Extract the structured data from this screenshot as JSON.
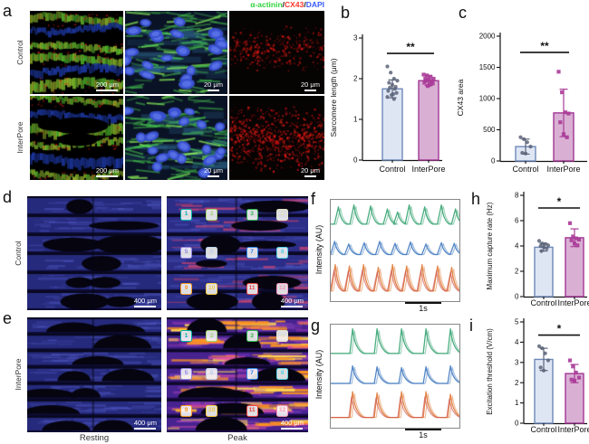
{
  "colors": {
    "control_fill": "#dee6f4",
    "control_stroke": "#6e88b8",
    "control_point": "#5a6377",
    "interpore_fill": "#d9b0d4",
    "interpore_stroke": "#a23693",
    "interpore_point": "#aa3b98",
    "trace_green": "#3fa878",
    "trace_blue": "#4a80c2",
    "trace_orange": "#e08040",
    "trace_red": "#cc5050"
  },
  "panels": {
    "a": "a",
    "b": "b",
    "c": "c",
    "d": "d",
    "e": "e",
    "f": "f",
    "g": "g",
    "h": "h",
    "i": "i"
  },
  "panel_a": {
    "legend": [
      {
        "text": "α-actinin",
        "color": "#2ed33c"
      },
      {
        "text": "/",
        "color": "#1a1a1a"
      },
      {
        "text": "CX43",
        "color": "#ff3a2e"
      },
      {
        "text": "/",
        "color": "#1a1a1a"
      },
      {
        "text": "DAPI",
        "color": "#3a5cff"
      }
    ],
    "row_labels": [
      "Control",
      "InterPore"
    ],
    "scalebars": [
      "200 μm",
      "20 μm",
      "20 μm",
      "200 μm",
      "20 μm",
      "20 μm"
    ]
  },
  "panel_d": {
    "row_label": "Control",
    "scalebars": [
      "400 μm",
      "400 μm"
    ]
  },
  "panel_e": {
    "row_label": "InterPore",
    "scalebars": [
      "400 μm",
      "400 μm"
    ],
    "col_labels": [
      "Resting",
      "Peak"
    ]
  },
  "roi_markers": [
    {
      "n": "1",
      "color": "#00b3a4"
    },
    {
      "n": "2",
      "color": "#9ed36a"
    },
    {
      "n": "3",
      "color": "#2db84d"
    },
    {
      "n": "4",
      "color": "#dfe6c2"
    },
    {
      "n": "5",
      "color": "#8f86e0"
    },
    {
      "n": "6",
      "color": "#bcd0e8"
    },
    {
      "n": "7",
      "color": "#2f86e8"
    },
    {
      "n": "8",
      "color": "#54cfe0"
    },
    {
      "n": "9",
      "color": "#f59a23"
    },
    {
      "n": "10",
      "color": "#f3c83e"
    },
    {
      "n": "11",
      "color": "#ef4444"
    },
    {
      "n": "12",
      "color": "#f492bc"
    }
  ],
  "chart_data": [
    {
      "panel": "b",
      "type": "bar",
      "ylabel": "Sarcomere length (μm)",
      "ylim": [
        0,
        3
      ],
      "yticks": [
        0,
        1,
        2,
        3
      ],
      "categories": [
        "Control",
        "InterPore"
      ],
      "values": [
        1.75,
        1.95
      ],
      "errors": [
        0.22,
        0.12
      ],
      "points": [
        [
          2.3,
          2.15,
          2.0,
          1.95,
          1.9,
          1.85,
          1.8,
          1.78,
          1.75,
          1.7,
          1.65,
          1.62,
          1.6,
          1.55,
          1.5
        ],
        [
          2.1,
          2.08,
          2.05,
          2.0,
          2.0,
          1.98,
          1.95,
          1.95,
          1.92,
          1.9,
          1.88,
          1.85,
          1.82
        ]
      ],
      "sig": "**"
    },
    {
      "panel": "c",
      "type": "bar",
      "ylabel": "CX43 area",
      "ylim": [
        0,
        2000
      ],
      "yticks": [
        0,
        500,
        1000,
        1500,
        2000
      ],
      "categories": [
        "Control",
        "InterPore"
      ],
      "values": [
        230,
        770
      ],
      "errors": [
        120,
        380
      ],
      "points": [
        [
          380,
          350,
          300,
          230,
          130,
          120
        ],
        [
          1430,
          1100,
          780,
          760,
          620,
          430,
          380
        ]
      ],
      "sig": "**"
    },
    {
      "panel": "f",
      "type": "line",
      "ylabel": "Intensity (AU)",
      "time_scale": "1s",
      "series": [
        {
          "name": "roi-trace-green",
          "color": "trace_green",
          "baseline": 0.24,
          "amp": 0.2,
          "peaks": [
            0.06,
            0.18,
            0.31,
            0.44,
            0.52,
            0.61,
            0.73,
            0.86,
            0.97
          ],
          "amps": [
            0.85,
            0.95,
            0.9,
            0.75,
            0.6,
            0.95,
            0.85,
            0.95,
            0.75
          ]
        },
        {
          "name": "roi-trace-blue",
          "color": "trace_blue",
          "baseline": 0.54,
          "amp": 0.13,
          "peaks": [
            0.03,
            0.14,
            0.26,
            0.38,
            0.5,
            0.62,
            0.74,
            0.86,
            0.96
          ],
          "amps": [
            1,
            0.8,
            0.9,
            1,
            0.85,
            0.95,
            0.8,
            0.9,
            0.85
          ]
        },
        {
          "name": "roi-trace-orange",
          "color": "trace_orange",
          "baseline": 0.9,
          "amp": 0.26,
          "peaks": [
            0.035,
            0.145,
            0.255,
            0.37,
            0.48,
            0.59,
            0.71,
            0.83,
            0.94
          ],
          "amps": [
            1,
            0.95,
            1,
            0.9,
            1,
            0.95,
            1,
            0.95,
            0.9
          ]
        }
      ]
    },
    {
      "panel": "g",
      "type": "line",
      "ylabel": "Intensity (AU)",
      "time_scale": "1s",
      "series": [
        {
          "name": "roi-trace-green",
          "color": "trace_green",
          "baseline": 0.28,
          "amp": 0.24,
          "peaks": [
            0.17,
            0.36,
            0.55,
            0.74,
            0.93
          ],
          "amps": [
            1,
            1,
            1,
            1,
            1
          ]
        },
        {
          "name": "roi-trace-blue",
          "color": "trace_blue",
          "baseline": 0.57,
          "amp": 0.17,
          "peaks": [
            0.17,
            0.36,
            0.55,
            0.74,
            0.93
          ],
          "amps": [
            1,
            0.95,
            0.9,
            0.95,
            1
          ]
        },
        {
          "name": "roi-trace-orange",
          "color": "trace_orange",
          "baseline": 0.9,
          "amp": 0.25,
          "peaks": [
            0.17,
            0.36,
            0.55,
            0.74,
            0.93
          ],
          "amps": [
            1,
            0.95,
            1,
            1,
            0.9
          ]
        }
      ]
    },
    {
      "panel": "h",
      "type": "bar",
      "ylabel": "Maximum capture rate (Hz)",
      "ylim": [
        0,
        8
      ],
      "yticks": [
        0,
        2,
        4,
        6,
        8
      ],
      "categories": [
        "Control",
        "InterPore"
      ],
      "values": [
        3.9,
        4.65
      ],
      "errors": [
        0.3,
        0.7
      ],
      "points": [
        [
          4.4,
          4.2,
          4.15,
          4.05,
          4.0,
          3.9,
          3.8,
          3.6
        ],
        [
          5.8,
          4.75,
          4.6,
          4.5,
          4.45,
          4.2,
          4.05
        ]
      ],
      "sig": "*"
    },
    {
      "panel": "i",
      "type": "bar",
      "ylabel": "Excitation threshold (V/cm)",
      "ylim": [
        0,
        5
      ],
      "yticks": [
        0,
        1,
        2,
        3,
        4,
        5
      ],
      "categories": [
        "Control",
        "InterPore"
      ],
      "values": [
        3.15,
        2.45
      ],
      "errors": [
        0.55,
        0.45
      ],
      "points": [
        [
          3.8,
          3.7,
          3.45,
          3.1,
          2.75,
          2.6
        ],
        [
          3.1,
          2.8,
          2.5,
          2.25,
          2.15,
          2.1
        ]
      ],
      "sig": "*"
    }
  ]
}
